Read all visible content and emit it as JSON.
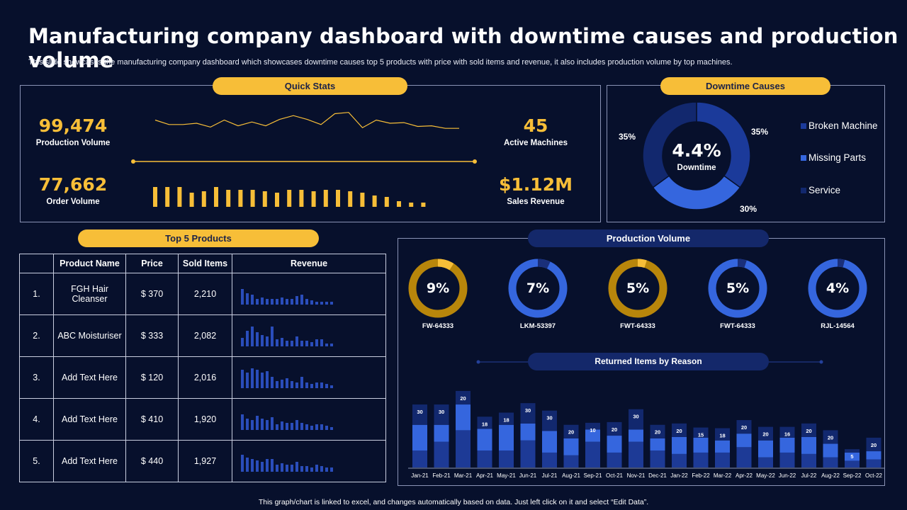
{
  "header": {
    "title": "Manufacturing company dashboard with downtime causes and production volume",
    "subtitle": "This slide showcases the manufacturing company dashboard which showcases downtime causes top 5 products with price with sold items and revenue, it also includes production volume by top machines."
  },
  "quick_stats": {
    "heading": "Quick Stats",
    "production_volume": {
      "value": "99,474",
      "label": "Production Volume"
    },
    "order_volume": {
      "value": "77,662",
      "label": "Order Volume"
    },
    "active_machines": {
      "value": "45",
      "label": "Active Machines"
    },
    "sales_revenue": {
      "value": "$1.12M",
      "label": "Sales Revenue"
    },
    "sparkline": [
      45,
      38,
      38,
      40,
      34,
      45,
      36,
      42,
      36,
      46,
      52,
      46,
      38,
      55,
      57,
      33,
      45,
      40,
      41,
      35,
      36,
      32,
      32
    ],
    "bars": [
      28,
      28,
      28,
      20,
      22,
      28,
      24,
      24,
      24,
      22,
      20,
      24,
      24,
      22,
      24,
      24,
      22,
      20,
      16,
      14,
      8,
      6,
      6
    ]
  },
  "downtime": {
    "heading": "Downtime Causes",
    "center_value": "4.4%",
    "center_label": "Downtime",
    "slices": [
      {
        "name": "Broken Machine",
        "value": 35,
        "label": "35%",
        "color": "#1b3a9a"
      },
      {
        "name": "Missing Parts",
        "value": 30,
        "label": "30%",
        "color": "#3566de"
      },
      {
        "name": "Service",
        "value": 35,
        "label": "35%",
        "color": "#12286e"
      }
    ]
  },
  "top_products": {
    "heading": "Top 5 Products",
    "columns": [
      "",
      "Product Name",
      "Price",
      "Sold Items",
      "Revenue"
    ],
    "rows": [
      {
        "idx": "1.",
        "name": "FGH Hair Cleanser",
        "price": "$ 370",
        "sold": "2,210",
        "rev": [
          22,
          16,
          14,
          8,
          10,
          8,
          8,
          8,
          10,
          8,
          8,
          12,
          14,
          8,
          6,
          4,
          4,
          4,
          4
        ]
      },
      {
        "idx": "2.",
        "name": "ABC Moisturiser",
        "price": "$ 333",
        "sold": "2,082",
        "rev": [
          12,
          22,
          28,
          20,
          16,
          14,
          28,
          10,
          12,
          8,
          8,
          14,
          8,
          8,
          6,
          10,
          10,
          4,
          4
        ]
      },
      {
        "idx": "3.",
        "name": "Add Text Here",
        "price": "$ 120",
        "sold": "2,016",
        "rev": [
          26,
          22,
          28,
          26,
          22,
          24,
          16,
          10,
          12,
          14,
          10,
          8,
          16,
          8,
          6,
          8,
          8,
          6,
          4
        ]
      },
      {
        "idx": "4.",
        "name": "Add Text Here",
        "price": "$ 410",
        "sold": "1,920",
        "rev": [
          22,
          16,
          14,
          20,
          16,
          14,
          18,
          8,
          12,
          10,
          10,
          14,
          10,
          8,
          6,
          8,
          8,
          6,
          4
        ]
      },
      {
        "idx": "5.",
        "name": "Add Text Here",
        "price": "$ 440",
        "sold": "1,927",
        "rev": [
          24,
          20,
          18,
          16,
          14,
          18,
          18,
          10,
          12,
          10,
          10,
          14,
          8,
          8,
          6,
          10,
          8,
          6,
          6
        ]
      }
    ]
  },
  "production_volume": {
    "heading": "Production Volume",
    "machines": [
      {
        "name": "FW-64333",
        "value": "9%",
        "pct": 9,
        "color": "#b8860b",
        "accent": "#f7be38"
      },
      {
        "name": "LKM-53397",
        "value": "7%",
        "pct": 7,
        "color": "#3566de",
        "accent": "#1a2f7a"
      },
      {
        "name": "FWT-64333",
        "value": "5%",
        "pct": 5,
        "color": "#b8860b",
        "accent": "#f7be38"
      },
      {
        "name": "FWT-64333",
        "value": "5%",
        "pct": 5,
        "color": "#3566de",
        "accent": "#1a2f7a"
      },
      {
        "name": "RJL-14564",
        "value": "4%",
        "pct": 4,
        "color": "#3566de",
        "accent": "#1a2f7a"
      }
    ]
  },
  "chart_data": {
    "type": "bar",
    "title": "Returned Items by Reason",
    "categories": [
      "Jan-21",
      "Feb-21",
      "Mar-21",
      "Apr-21",
      "May-21",
      "Jun-21",
      "Jul-21",
      "Aug-21",
      "Sep-21",
      "Oct-21",
      "Nov-21",
      "Dec-21",
      "Jan-22",
      "Feb-22",
      "Mar-22",
      "Apr-22",
      "May-22",
      "Jun-22",
      "Jul-22",
      "Aug-22",
      "Sep-22",
      "Oct-22"
    ],
    "series": [
      {
        "name": "Series 1",
        "color": "#1d3a96",
        "values": [
          25,
          38,
          55,
          25,
          25,
          40,
          22,
          18,
          38,
          22,
          38,
          25,
          20,
          22,
          22,
          30,
          15,
          22,
          20,
          15,
          10,
          12
        ]
      },
      {
        "name": "Series 2",
        "color": "#3566de",
        "values": [
          38,
          25,
          38,
          32,
          38,
          25,
          32,
          25,
          18,
          25,
          18,
          18,
          25,
          22,
          18,
          20,
          25,
          22,
          25,
          20,
          12,
          12
        ]
      },
      {
        "name": "Series 3",
        "color": "#12286e",
        "values": [
          30,
          30,
          20,
          18,
          18,
          30,
          30,
          20,
          10,
          20,
          30,
          20,
          20,
          15,
          18,
          20,
          20,
          16,
          20,
          20,
          5,
          20
        ]
      }
    ],
    "top_labels": [
      "30",
      "30",
      "20",
      "18",
      "18",
      "30",
      "30",
      "20",
      "10",
      "20",
      "30",
      "20",
      "20",
      "15",
      "18",
      "20",
      "20",
      "16",
      "20",
      "20",
      "5",
      "20"
    ],
    "ylim": [
      0,
      115
    ]
  },
  "footer": "This graph/chart is linked to excel, and changes automatically based on data. Just left click on it and select “Edit Data”."
}
